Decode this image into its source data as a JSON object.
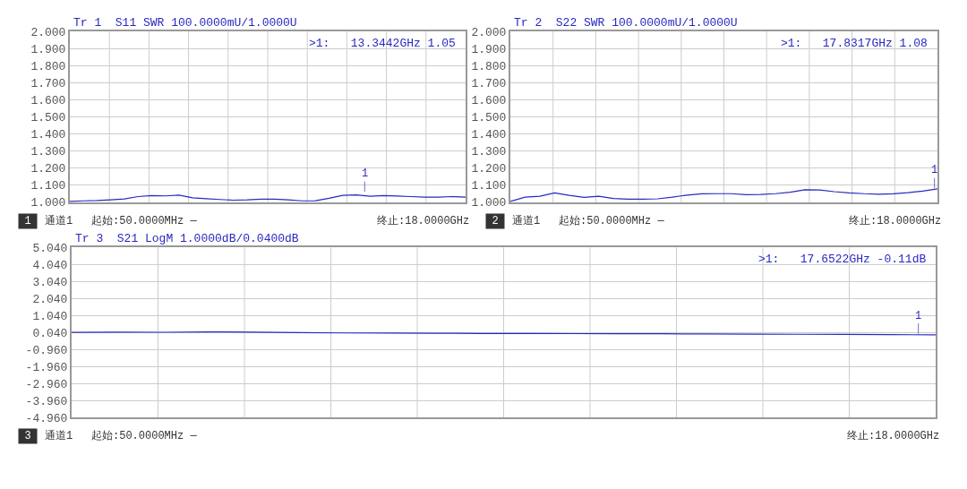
{
  "chart_data": [
    {
      "type": "line",
      "title": "Tr 1  S11 SWR 100.0000mU/1.0000U",
      "categories": [
        null,
        null,
        null,
        null,
        null,
        null,
        null,
        null,
        null,
        null,
        null,
        null,
        null,
        null,
        null,
        null,
        null,
        null,
        null,
        null,
        null,
        null,
        null,
        null,
        null,
        null,
        null,
        null,
        null,
        null
      ],
      "series": [
        {
          "color": "#2828c0",
          "values": [
            1.005,
            1.008,
            1.01,
            1.014,
            1.019,
            1.033,
            1.039,
            1.037,
            1.041,
            1.026,
            1.021,
            1.016,
            1.012,
            1.014,
            1.018,
            1.018,
            1.014,
            1.008,
            1.009,
            1.023,
            1.04,
            1.043,
            1.035,
            1.039,
            1.036,
            1.033,
            1.03,
            1.03,
            1.033,
            1.03
          ]
        }
      ],
      "ylim": [
        1.0,
        2.0
      ],
      "yticks": [
        {
          "value": 1.0,
          "label": "1.000"
        },
        {
          "value": 1.1,
          "label": "1.100"
        },
        {
          "value": 1.2,
          "label": "1.200"
        },
        {
          "value": 1.3,
          "label": "1.300"
        },
        {
          "value": 1.4,
          "label": "1.400"
        },
        {
          "value": 1.5,
          "label": "1.500"
        },
        {
          "value": 1.6,
          "label": "1.600"
        },
        {
          "value": 1.7,
          "label": "1.700"
        },
        {
          "value": 1.8,
          "label": "1.800"
        },
        {
          "value": 1.9,
          "label": "1.900"
        },
        {
          "value": 2.0,
          "label": "2.000"
        }
      ],
      "grid": true,
      "tick_labels": "y",
      "annotations": [
        ">1:   13.3442GHz 1.05",
        "1",
        "1",
        "通道1",
        "起始:50.0000MHz —",
        "终止:18.0000GHz"
      ]
    },
    {
      "type": "line",
      "title": "Tr 2  S22 SWR 100.0000mU/1.0000U",
      "categories": [
        null,
        null,
        null,
        null,
        null,
        null,
        null,
        null,
        null,
        null,
        null,
        null,
        null,
        null,
        null,
        null,
        null,
        null,
        null,
        null,
        null,
        null,
        null,
        null,
        null,
        null,
        null,
        null,
        null,
        null
      ],
      "series": [
        {
          "color": "#2828c0",
          "values": [
            1.005,
            1.03,
            1.035,
            1.055,
            1.04,
            1.028,
            1.035,
            1.022,
            1.018,
            1.018,
            1.02,
            1.03,
            1.042,
            1.049,
            1.05,
            1.05,
            1.044,
            1.045,
            1.05,
            1.059,
            1.073,
            1.072,
            1.062,
            1.055,
            1.05,
            1.047,
            1.049,
            1.056,
            1.065,
            1.078
          ]
        }
      ],
      "ylim": [
        1.0,
        2.0
      ],
      "yticks": [
        {
          "value": 1.0,
          "label": "1.000"
        },
        {
          "value": 1.1,
          "label": "1.100"
        },
        {
          "value": 1.2,
          "label": "1.200"
        },
        {
          "value": 1.3,
          "label": "1.300"
        },
        {
          "value": 1.4,
          "label": "1.400"
        },
        {
          "value": 1.5,
          "label": "1.500"
        },
        {
          "value": 1.6,
          "label": "1.600"
        },
        {
          "value": 1.7,
          "label": "1.700"
        },
        {
          "value": 1.8,
          "label": "1.800"
        },
        {
          "value": 1.9,
          "label": "1.900"
        },
        {
          "value": 2.0,
          "label": "2.000"
        }
      ],
      "grid": true,
      "tick_labels": "y",
      "annotations": [
        ">1:   17.8317GHz 1.08",
        "1",
        "2",
        "通道1",
        "起始:50.0000MHz —",
        "终止:18.0000GHz"
      ]
    },
    {
      "type": "line",
      "title": "Tr 3  S21 LogM 1.0000dB/0.0400dB",
      "categories": [
        null,
        null,
        null,
        null,
        null,
        null,
        null,
        null,
        null,
        null,
        null,
        null,
        null,
        null,
        null,
        null,
        null,
        null,
        null,
        null
      ],
      "series": [
        {
          "color": "#2828c0",
          "values": [
            0.04,
            0.06,
            0.05,
            0.07,
            0.06,
            0.03,
            0.01,
            0.0,
            -0.01,
            -0.02,
            -0.02,
            -0.03,
            -0.04,
            -0.04,
            -0.05,
            -0.06,
            -0.07,
            -0.08,
            -0.09,
            -0.1
          ]
        }
      ],
      "ylim": [
        -4.96,
        5.04
      ],
      "yticks": [
        {
          "value": -4.96,
          "label": "-4.960"
        },
        {
          "value": -3.96,
          "label": "-3.960"
        },
        {
          "value": -2.96,
          "label": "-2.960"
        },
        {
          "value": -1.96,
          "label": "-1.960"
        },
        {
          "value": -0.96,
          "label": "-0.960"
        },
        {
          "value": 0.04,
          "label": "0.040"
        },
        {
          "value": 1.04,
          "label": "1.040"
        },
        {
          "value": 2.04,
          "label": "2.040"
        },
        {
          "value": 3.04,
          "label": "3.040"
        },
        {
          "value": 4.04,
          "label": "4.040"
        },
        {
          "value": 5.04,
          "label": "5.040"
        }
      ],
      "grid": true,
      "tick_labels": "y",
      "annotations": [
        ">1:   17.6522GHz -0.11dB",
        "1",
        "3",
        "通道1",
        "起始:50.0000MHz —",
        "终止:18.0000GHz"
      ]
    }
  ]
}
